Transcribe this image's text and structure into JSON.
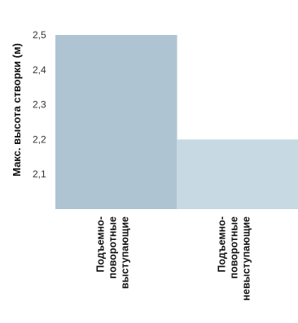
{
  "chart_data": {
    "type": "bar",
    "ylabel": "Макс. высота створки (м)",
    "ylim": [
      2.0,
      2.5
    ],
    "yticks": [
      "2,1",
      "2,2",
      "2,3",
      "2,4",
      "2,5"
    ],
    "ytick_values": [
      2.1,
      2.2,
      2.3,
      2.4,
      2.5
    ],
    "categories": [
      [
        "Подъемно-",
        "поворотные",
        "выступающие"
      ],
      [
        "Подъемно-",
        "поворотные",
        "невыступающие"
      ]
    ],
    "values": [
      2.5,
      2.2
    ],
    "colors": [
      "#aec4d2",
      "#c7d9e3"
    ],
    "grid": false,
    "legend": "none"
  }
}
